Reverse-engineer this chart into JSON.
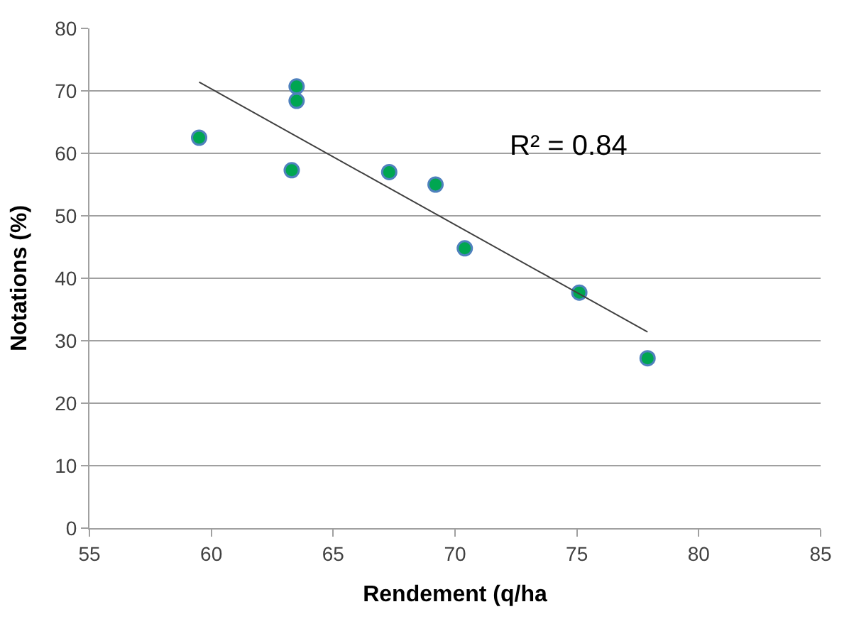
{
  "chart_data": {
    "type": "scatter",
    "xlabel": "Rendement (q/ha",
    "ylabel": "Notations (%)",
    "annotations": [
      "R² = 0.84"
    ],
    "xlim": [
      55,
      85
    ],
    "xticks": [
      55,
      60,
      65,
      70,
      75,
      80,
      85
    ],
    "ylim": [
      0,
      80
    ],
    "yticks": [
      0,
      10,
      20,
      30,
      40,
      50,
      60,
      70,
      80
    ],
    "grid": "y",
    "legend": false,
    "series": [
      {
        "marker": "circle",
        "color": "#00a651",
        "x": [
          59.5,
          63.5,
          63.5,
          63.3,
          67.3,
          69.2,
          70.4,
          75.1,
          77.9
        ],
        "values": [
          62.5,
          70.7,
          68.4,
          57.3,
          57.0,
          55.0,
          44.8,
          37.7,
          27.2
        ]
      },
      {
        "type": "line",
        "marker": "none",
        "color": "#404040",
        "x": [
          59.5,
          77.9
        ],
        "values": [
          71.4,
          31.4
        ]
      }
    ]
  }
}
